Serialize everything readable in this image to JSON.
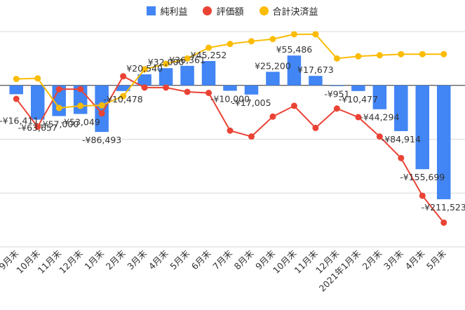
{
  "chart_data": {
    "type": "bar",
    "categories": [
      "9月末",
      "10月末",
      "11月末",
      "12月末",
      "1月末",
      "2月末",
      "3月末",
      "4月末",
      "5月末",
      "6月末",
      "7月末",
      "8月末",
      "9月末",
      "10月末",
      "11月末",
      "12月末",
      "2021年1月末",
      "2月末",
      "3月末",
      "4月末",
      "5月末"
    ],
    "ylim": [
      -300000,
      100000
    ],
    "grid": true,
    "legend_position": "top",
    "series": [
      {
        "name": "純利益",
        "type": "bar",
        "color": "#4285f4",
        "values": [
          -16411,
          -63657,
          -57000,
          -53049,
          -86493,
          -10478,
          20540,
          32000,
          36361,
          45252,
          -10000,
          -17005,
          25200,
          55486,
          17673,
          -951,
          -10477,
          -44294,
          -84914,
          -155699,
          -211523
        ]
      },
      {
        "name": "評価額",
        "type": "line",
        "color": "#ea4335",
        "values": [
          -25000,
          -77000,
          -7000,
          -7000,
          -52000,
          17000,
          -4000,
          -4000,
          -12000,
          -14000,
          -84000,
          -95000,
          -58000,
          -38000,
          -79000,
          -43000,
          -59000,
          -95000,
          -135000,
          -205000,
          -255000
        ]
      },
      {
        "name": "合計決済益",
        "type": "line",
        "color": "#fbbc04",
        "values": [
          12000,
          13000,
          -42000,
          -38000,
          -37000,
          -20000,
          30000,
          40000,
          50000,
          70000,
          77000,
          82000,
          86000,
          95000,
          95000,
          50000,
          54000,
          56000,
          58000,
          58000,
          58000
        ]
      }
    ],
    "data_labels": [
      "-¥16,411",
      "-¥63,657",
      "-¥57,000",
      "-¥53,049",
      "-¥86,493",
      "-¥10,478",
      "¥20,540",
      "¥32,000",
      "¥36,361",
      "¥45,252",
      "-¥10,000",
      "-¥17,005",
      "¥25,200",
      "¥55,486",
      "¥17,673",
      "-¥951",
      "-¥10,477",
      "-¥44,294",
      "-¥84,914",
      "-¥155,699",
      "-¥211,523"
    ]
  }
}
